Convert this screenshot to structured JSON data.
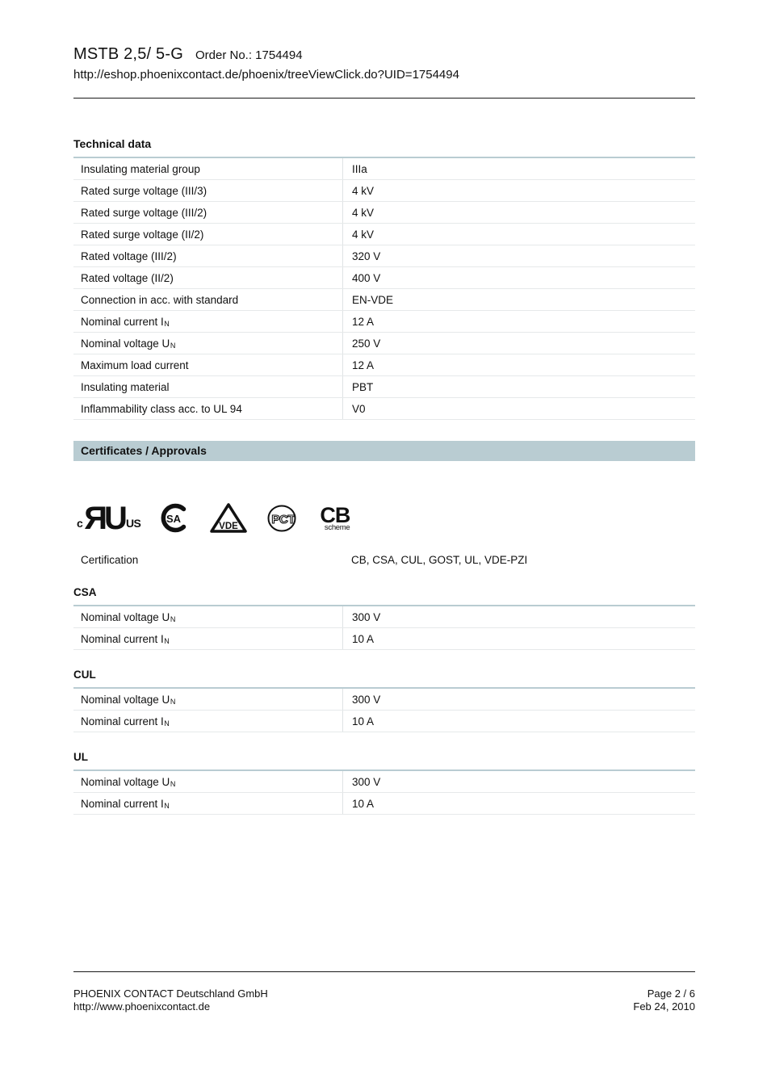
{
  "header": {
    "product": "MSTB 2,5/ 5-G",
    "order_no": "Order No.: 1754494",
    "url": "http://eshop.phoenixcontact.de/phoenix/treeViewClick.do?UID=1754494"
  },
  "technical": {
    "heading": "Technical data",
    "rows": [
      {
        "label": "Insulating material group",
        "value": "IIIa"
      },
      {
        "label": "Rated surge voltage (III/3)",
        "value": "4 kV"
      },
      {
        "label": "Rated surge voltage (III/2)",
        "value": "4 kV"
      },
      {
        "label": "Rated surge voltage (II/2)",
        "value": "4 kV"
      },
      {
        "label": "Rated voltage (III/2)",
        "value": "320 V"
      },
      {
        "label": "Rated voltage (II/2)",
        "value": "400 V"
      },
      {
        "label": "Connection in acc. with standard",
        "value": "EN-VDE"
      },
      {
        "label": "Nominal current I",
        "sub": "N",
        "value": "12 A"
      },
      {
        "label": "Nominal voltage U",
        "sub": "N",
        "value": "250 V"
      },
      {
        "label": "Maximum load current",
        "value": "12 A"
      },
      {
        "label": "Insulating material",
        "value": "PBT"
      },
      {
        "label": "Inflammability class acc. to UL 94",
        "value": "V0"
      }
    ]
  },
  "certificates": {
    "heading": "Certificates / Approvals",
    "certification_label": "Certification",
    "certification_value": "CB, CSA, CUL, GOST, UL, VDE-PZI"
  },
  "logos": {
    "cul": {
      "left": "c",
      "main": "ЯU",
      "right": "US"
    },
    "csa": {
      "inner": "SA"
    },
    "vde": {
      "label": "VDE"
    },
    "gost": {
      "label": "РСТ"
    },
    "cb": {
      "title": "CB",
      "subtitle": "scheme"
    }
  },
  "approvals": [
    {
      "heading": "CSA",
      "rows": [
        {
          "label": "Nominal voltage U",
          "sub": "N",
          "value": "300 V"
        },
        {
          "label": "Nominal current I",
          "sub": "N",
          "value": "10 A"
        }
      ]
    },
    {
      "heading": "CUL",
      "rows": [
        {
          "label": "Nominal voltage U",
          "sub": "N",
          "value": "300 V"
        },
        {
          "label": "Nominal current I",
          "sub": "N",
          "value": "10 A"
        }
      ]
    },
    {
      "heading": "UL",
      "rows": [
        {
          "label": "Nominal voltage U",
          "sub": "N",
          "value": "300 V"
        },
        {
          "label": "Nominal current I",
          "sub": "N",
          "value": "10 A"
        }
      ]
    }
  ],
  "footer": {
    "company": "PHOENIX CONTACT Deutschland GmbH",
    "website": "http://www.phoenixcontact.de",
    "page": "Page 2 / 6",
    "date": "Feb 24, 2010"
  },
  "colors": {
    "accent": "#b9ccd2",
    "row_line": "#e6e9ea",
    "col_line": "#dfe3e4",
    "text": "#111111"
  }
}
